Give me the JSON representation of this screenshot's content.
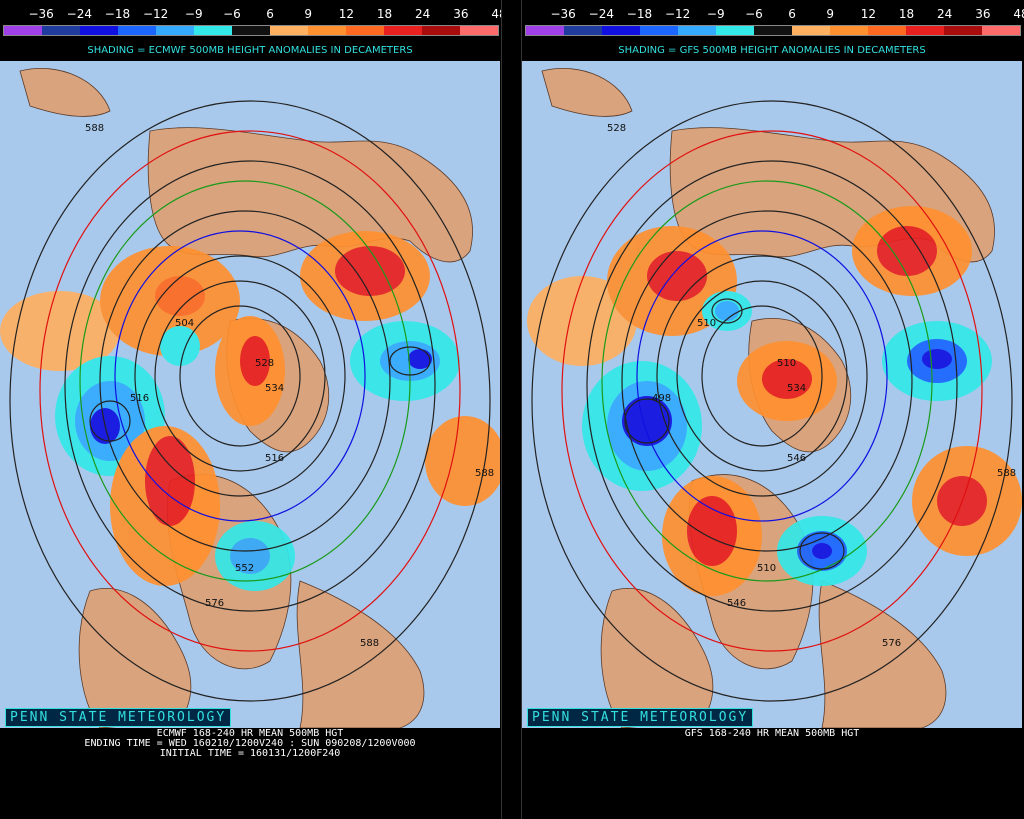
{
  "legend": {
    "labels": [
      "−36",
      "−24",
      "−18",
      "−12",
      "−9",
      "−6",
      "6",
      "9",
      "12",
      "18",
      "24",
      "36",
      "48"
    ],
    "colors": [
      "#a040e8",
      "#203c9e",
      "#1010e0",
      "#1a66ff",
      "#33aaff",
      "#33e8e8",
      "#111111",
      "#ffb060",
      "#ff9030",
      "#ff6a20",
      "#e82020",
      "#a80c0c",
      "#ff6a6a"
    ]
  },
  "ocean_color": "#a9c9ec",
  "land_color": "#d9a37d",
  "panels": [
    {
      "shading_title": "SHADING = ECMWF 500MB HEIGHT ANOMALIES IN DECAMETERS",
      "branding": "PENN STATE METEOROLOGY",
      "footer_lines": [
        "ECMWF 168-240 HR MEAN 500MB HGT",
        "ENDING TIME = WED 160210/1200V240 : SUN 090208/1200V000",
        "INITIAL TIME = 160131/1200F240"
      ],
      "contour_labels": [
        "588",
        "528",
        "516",
        "534",
        "516",
        "552",
        "576",
        "588",
        "588",
        "504"
      ]
    },
    {
      "shading_title": "SHADING = GFS 500MB HEIGHT ANOMALIES IN DECAMETERS",
      "branding": "PENN STATE METEOROLOGY",
      "footer_lines": [
        "GFS 168-240 HR MEAN 500MB HGT"
      ],
      "contour_labels": [
        "528",
        "510",
        "498",
        "534",
        "546",
        "510",
        "546",
        "576",
        "588",
        "510"
      ]
    }
  ]
}
